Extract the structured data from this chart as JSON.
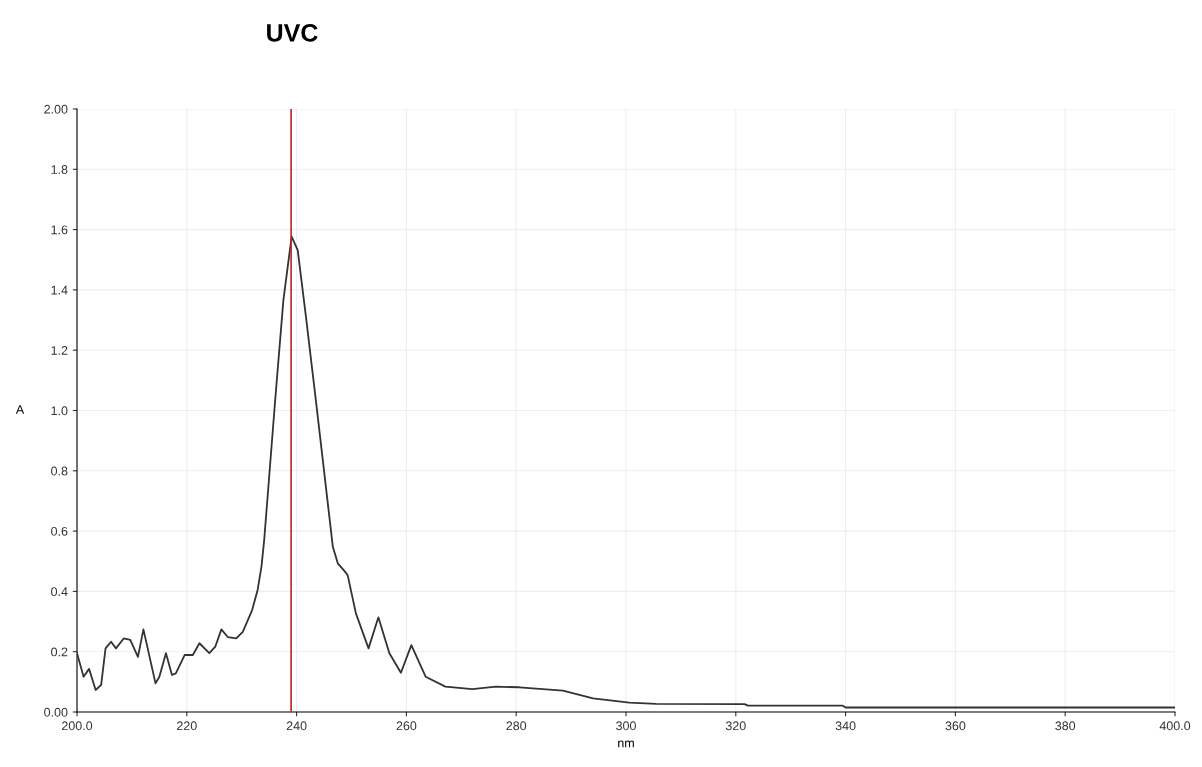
{
  "chart_data": {
    "type": "line",
    "title": "UVC",
    "xlabel": "nm",
    "ylabel": "A",
    "xlim": [
      200,
      400
    ],
    "xticks": [
      {
        "value": 200,
        "label": "200.0"
      },
      220,
      240,
      260,
      280,
      300,
      320,
      340,
      360,
      380,
      {
        "value": 400,
        "label": "400.0"
      }
    ],
    "ylim": [
      0,
      2
    ],
    "yticks": [
      {
        "value": 0,
        "label": "0.00"
      },
      0.2,
      0.4,
      0.6,
      0.8,
      {
        "value": 1,
        "label": "1.0"
      },
      1.2,
      1.4,
      1.6,
      1.8,
      {
        "value": 2,
        "label": "2.00"
      }
    ],
    "grid": true,
    "marker": "none",
    "line_style": "solid",
    "ref_lines": [
      {
        "axis": "x",
        "value": 239,
        "color": "#c0272d"
      }
    ],
    "series": [
      {
        "color": "#333333",
        "x": [
          200,
          201.2,
          202.2,
          203.4,
          204.4,
          205.2,
          206.2,
          207.1,
          208.5,
          209.7,
          211.1,
          212.1,
          214.3,
          215.0,
          216.2,
          217.3,
          218.0,
          219.6,
          221.1,
          222.3,
          224.1,
          225.2,
          226.3,
          227.5,
          229.0,
          230.2,
          231.9,
          232.9,
          233.6,
          234.1,
          236.1,
          237.6,
          239.1,
          240.2,
          241.7,
          243.5,
          246.6,
          247.5,
          248.7,
          249.3,
          250.8,
          253.1,
          254.9,
          256.9,
          259.0,
          260.9,
          263.5,
          267.1,
          272.0,
          276.3,
          280.6,
          288.5,
          294.0,
          300.6,
          305.5,
          321.6,
          322.2,
          339.5,
          340.0,
          400
        ],
        "values": [
          0.195,
          0.117,
          0.143,
          0.073,
          0.09,
          0.211,
          0.233,
          0.211,
          0.244,
          0.239,
          0.183,
          0.274,
          0.095,
          0.117,
          0.195,
          0.123,
          0.128,
          0.189,
          0.189,
          0.228,
          0.195,
          0.217,
          0.274,
          0.248,
          0.244,
          0.266,
          0.338,
          0.405,
          0.482,
          0.571,
          1.035,
          1.367,
          1.577,
          1.532,
          1.311,
          1.035,
          0.548,
          0.493,
          0.468,
          0.454,
          0.327,
          0.211,
          0.314,
          0.195,
          0.13,
          0.222,
          0.117,
          0.084,
          0.076,
          0.084,
          0.082,
          0.071,
          0.045,
          0.031,
          0.027,
          0.026,
          0.021,
          0.021,
          0.015,
          0.015
        ]
      }
    ]
  }
}
